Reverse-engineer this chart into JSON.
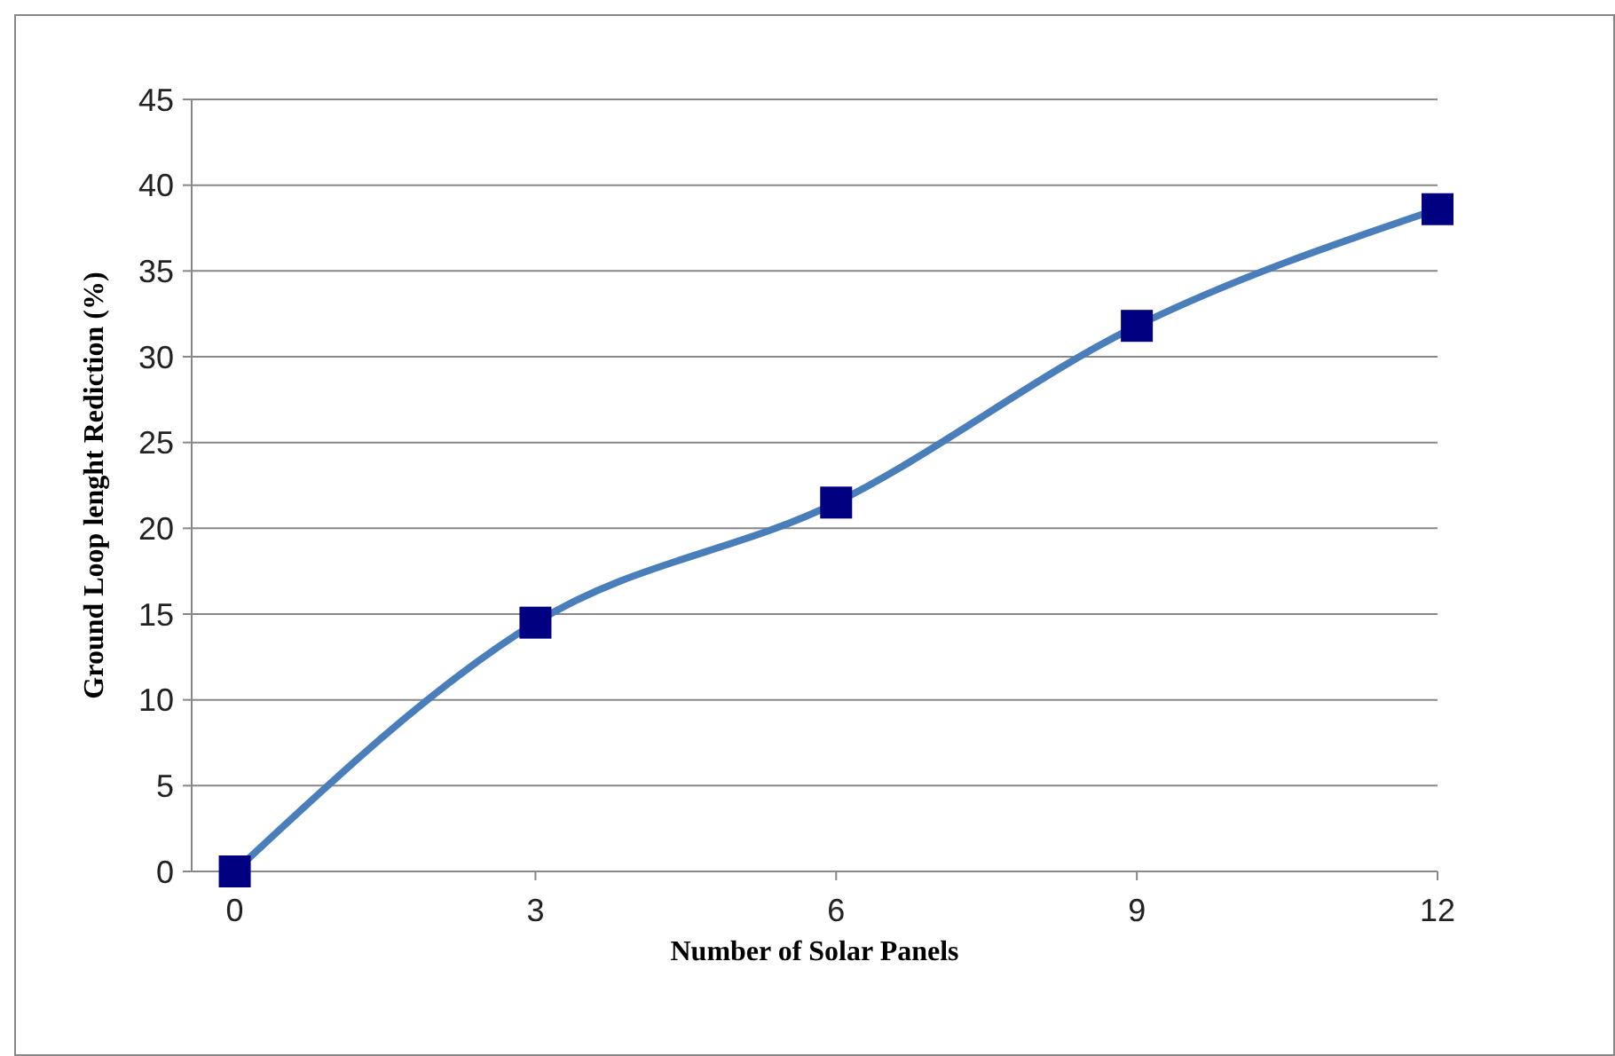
{
  "chart_data": {
    "type": "line",
    "xlabel": "Number of Solar Panels",
    "ylabel": "Ground Loop lenght Rediction (%)",
    "x": [
      0,
      3,
      6,
      9,
      12
    ],
    "series": [
      {
        "color": "#4a7ebb",
        "colors": [
          "#000080",
          "#000080",
          "#000080",
          "#000080",
          "#000080"
        ],
        "values": [
          0,
          14.5,
          21.5,
          31.8,
          38.6
        ]
      }
    ],
    "xlim": [
      -0.43,
      12
    ],
    "xticks": [
      0,
      3,
      6,
      9,
      12
    ],
    "ylim": [
      0,
      45
    ],
    "yticks": [
      0,
      5,
      10,
      15,
      20,
      25,
      30,
      35,
      40,
      45
    ],
    "grid": "y",
    "marker": "square",
    "line_style": "solid"
  }
}
